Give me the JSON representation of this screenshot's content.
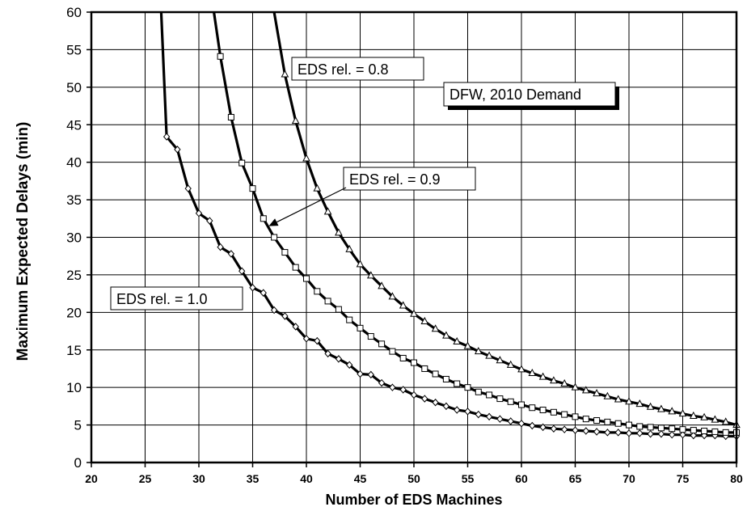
{
  "chart_data": {
    "type": "line",
    "title": "",
    "xlabel": "Number of EDS Machines",
    "ylabel": "Maximum Expected Delays (min)",
    "xlim": [
      20,
      80
    ],
    "ylim": [
      0,
      60
    ],
    "xticks": [
      20,
      25,
      30,
      35,
      40,
      45,
      50,
      55,
      60,
      65,
      70,
      75,
      80
    ],
    "yticks": [
      0,
      5,
      10,
      15,
      20,
      25,
      30,
      35,
      40,
      45,
      50,
      55,
      60
    ],
    "grid": true,
    "series": [
      {
        "name": "EDS rel. = 1.0",
        "marker": "diamond",
        "asymptote": [
          26.5,
          60
        ],
        "x": [
          27,
          28,
          29,
          30,
          31,
          32,
          33,
          34,
          35,
          36,
          37,
          38,
          39,
          40,
          41,
          42,
          43,
          44,
          45,
          46,
          47,
          48,
          49,
          50,
          51,
          52,
          53,
          54,
          55,
          56,
          57,
          58,
          59,
          60,
          61,
          62,
          63,
          64,
          65,
          66,
          67,
          68,
          69,
          70,
          71,
          72,
          73,
          74,
          75,
          76,
          77,
          78,
          79,
          80
        ],
        "values": [
          43.4,
          41.7,
          36.5,
          33.2,
          32.2,
          28.7,
          27.8,
          25.5,
          23.3,
          22.6,
          20.3,
          19.5,
          18.1,
          16.5,
          16.2,
          14.5,
          13.8,
          13.0,
          11.8,
          11.7,
          10.6,
          10.0,
          9.7,
          9.0,
          8.5,
          8.0,
          7.5,
          7.0,
          6.8,
          6.4,
          6.1,
          5.8,
          5.5,
          5.2,
          4.9,
          4.7,
          4.5,
          4.4,
          4.3,
          4.2,
          4.1,
          4.0,
          4.0,
          3.9,
          3.9,
          3.8,
          3.8,
          3.7,
          3.7,
          3.6,
          3.6,
          3.6,
          3.5,
          3.5
        ]
      },
      {
        "name": "EDS rel. = 0.9",
        "marker": "square",
        "asymptote": [
          31.4,
          60
        ],
        "x": [
          32,
          33,
          34,
          35,
          36,
          37,
          38,
          39,
          40,
          41,
          42,
          43,
          44,
          45,
          46,
          47,
          48,
          49,
          50,
          51,
          52,
          53,
          54,
          55,
          56,
          57,
          58,
          59,
          60,
          61,
          62,
          63,
          64,
          65,
          66,
          67,
          68,
          69,
          70,
          71,
          72,
          73,
          74,
          75,
          76,
          77,
          78,
          79,
          80
        ],
        "values": [
          54.1,
          46.0,
          39.9,
          36.5,
          32.5,
          30.0,
          28.0,
          26.0,
          24.5,
          22.8,
          21.5,
          20.4,
          19.0,
          17.9,
          16.8,
          15.8,
          14.8,
          13.9,
          13.3,
          12.5,
          11.8,
          11.1,
          10.5,
          10.0,
          9.4,
          9.0,
          8.5,
          8.1,
          7.7,
          7.3,
          7.0,
          6.7,
          6.4,
          6.1,
          5.8,
          5.6,
          5.4,
          5.2,
          5.0,
          4.8,
          4.7,
          4.6,
          4.5,
          4.4,
          4.3,
          4.2,
          4.1,
          4.0,
          4.0
        ]
      },
      {
        "name": "EDS rel. = 0.8",
        "marker": "triangle",
        "asymptote": [
          37.0,
          60
        ],
        "x": [
          38,
          39,
          40,
          41,
          42,
          43,
          44,
          45,
          46,
          47,
          48,
          49,
          50,
          51,
          52,
          53,
          54,
          55,
          56,
          57,
          58,
          59,
          60,
          61,
          62,
          63,
          64,
          65,
          66,
          67,
          68,
          69,
          70,
          71,
          72,
          73,
          74,
          75,
          76,
          77,
          78,
          79,
          80
        ],
        "values": [
          51.7,
          45.5,
          40.5,
          36.5,
          33.4,
          30.6,
          28.4,
          26.4,
          24.9,
          23.5,
          22.1,
          20.9,
          19.8,
          18.8,
          17.8,
          16.9,
          16.1,
          15.5,
          14.8,
          14.2,
          13.6,
          13.0,
          12.4,
          11.9,
          11.4,
          10.9,
          10.5,
          10.0,
          9.6,
          9.2,
          8.8,
          8.4,
          8.1,
          7.8,
          7.4,
          7.1,
          6.8,
          6.5,
          6.2,
          6.0,
          5.7,
          5.4,
          5.0
        ]
      }
    ],
    "annotations": [
      {
        "name": "label-rel-0.8",
        "text": "EDS rel. = 0.8"
      },
      {
        "name": "label-rel-0.9",
        "text": "EDS rel. = 0.9",
        "arrow_to": [
          36.5,
          31.5
        ]
      },
      {
        "name": "label-rel-1.0",
        "text": "EDS rel. = 1.0"
      },
      {
        "name": "label-dfw-demand",
        "text": "DFW, 2010 Demand",
        "shadow": true
      }
    ],
    "colors": {
      "line": "#000000",
      "grid": "#000000",
      "marker_fill": "#ffffff",
      "background": "#ffffff"
    }
  }
}
